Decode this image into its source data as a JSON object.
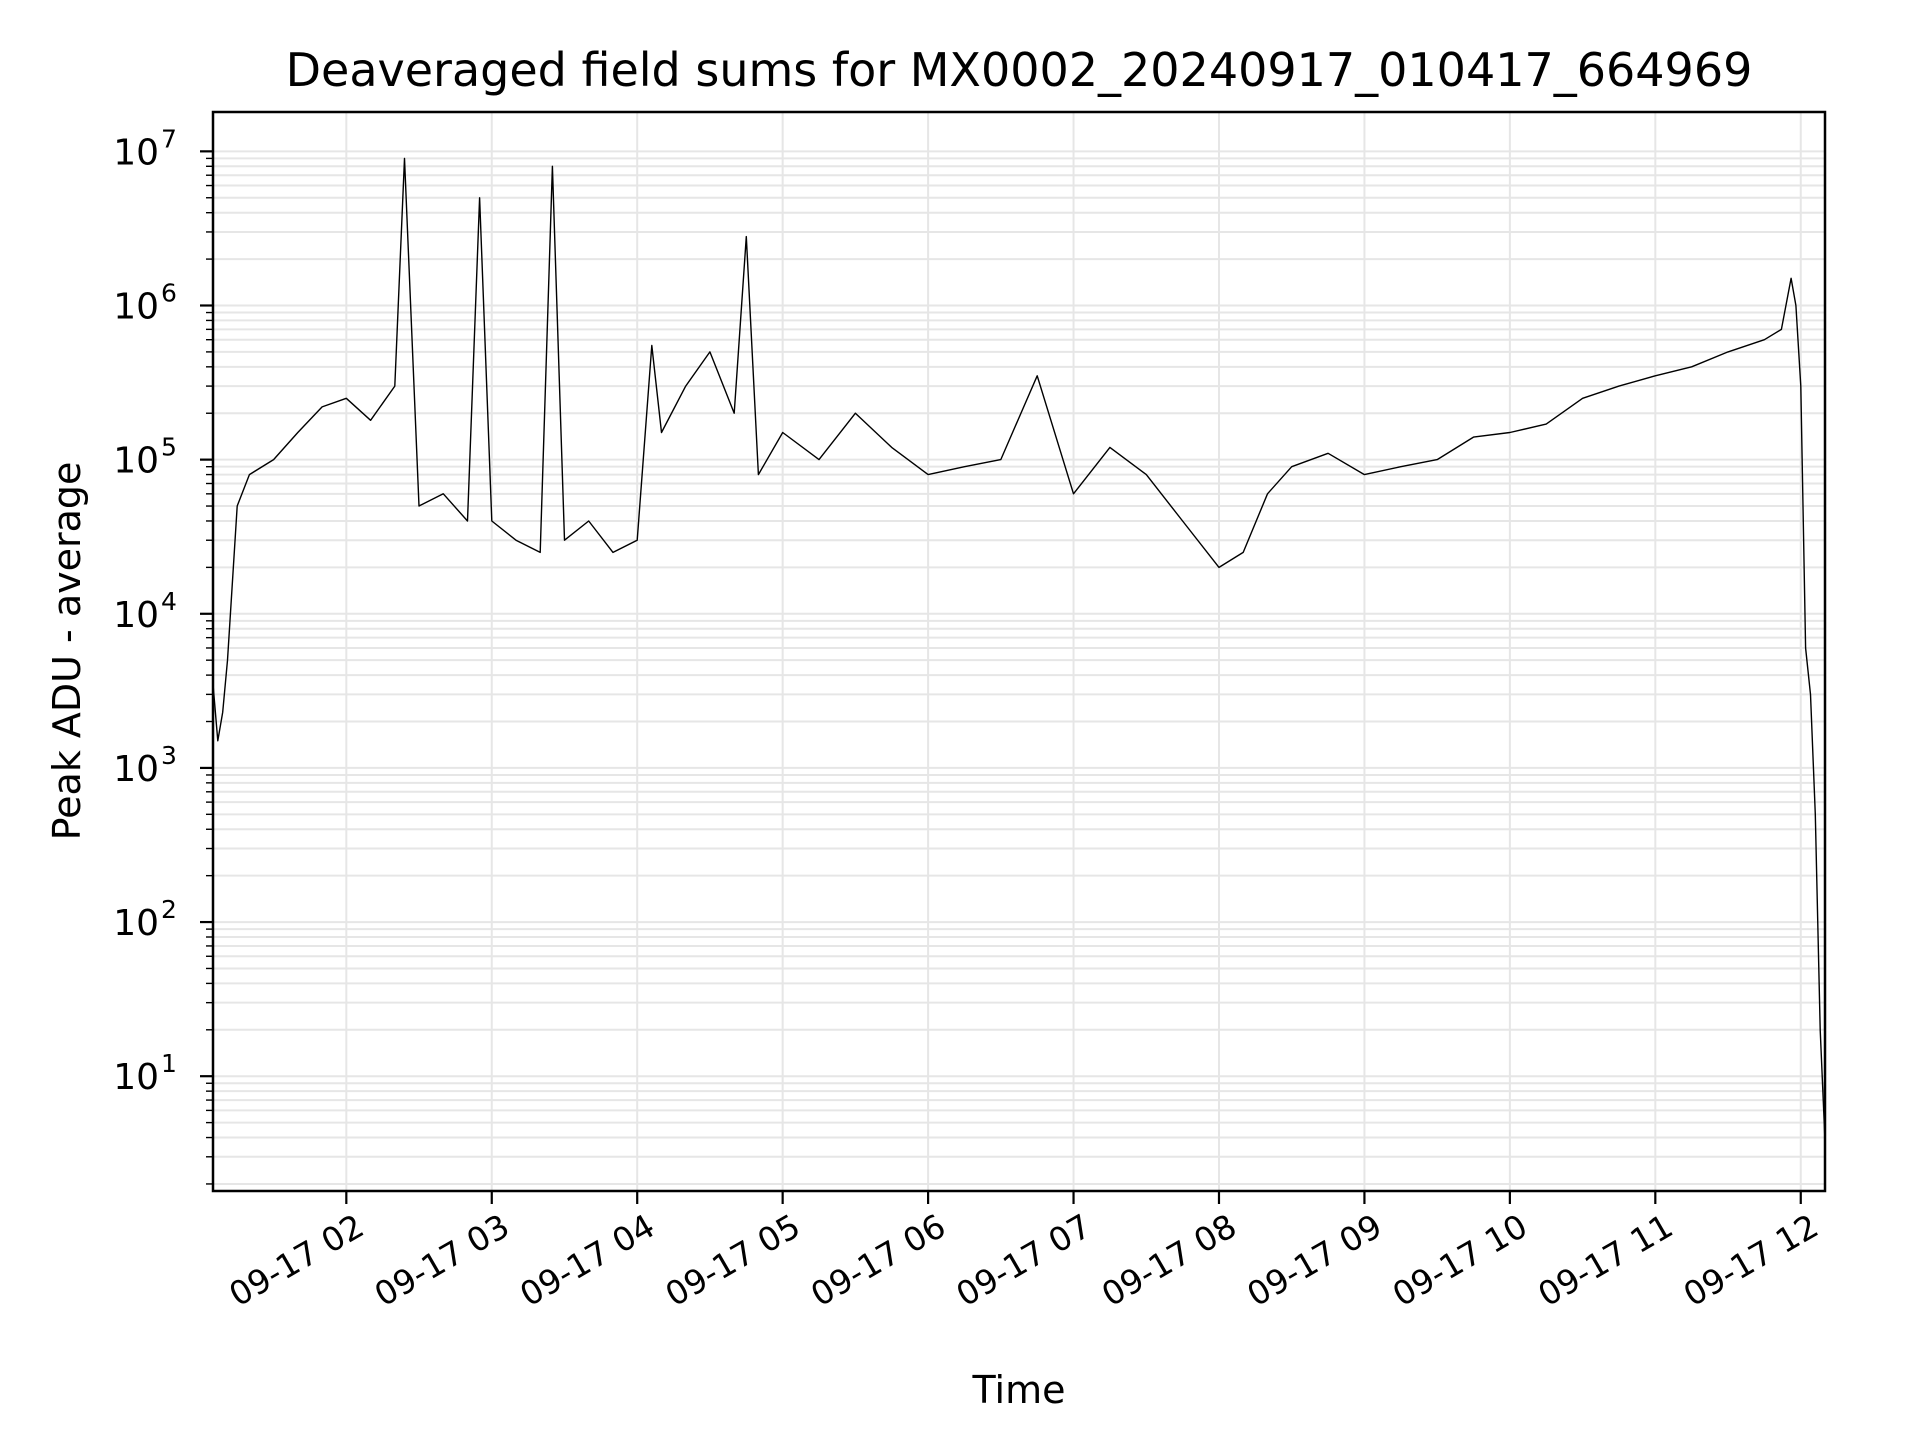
{
  "chart_data": {
    "type": "line",
    "title": "Deaveraged field sums for MX0002_20240917_010417_664969",
    "xlabel": "Time",
    "ylabel": "Peak ADU - average",
    "yscale": "log",
    "ylim": [
      1.8,
      18000000
    ],
    "xlim": [
      "2024-09-17 01:05",
      "2024-09-17 12:10"
    ],
    "grid": true,
    "grid_minor": true,
    "x_ticks": [
      "09-17 02",
      "09-17 03",
      "09-17 04",
      "09-17 05",
      "09-17 06",
      "09-17 07",
      "09-17 08",
      "09-17 09",
      "09-17 10",
      "09-17 11",
      "09-17 12"
    ],
    "x_tick_times": [
      "2024-09-17 02:00",
      "2024-09-17 03:00",
      "2024-09-17 04:00",
      "2024-09-17 05:00",
      "2024-09-17 06:00",
      "2024-09-17 07:00",
      "2024-09-17 08:00",
      "2024-09-17 09:00",
      "2024-09-17 10:00",
      "2024-09-17 11:00",
      "2024-09-17 12:00"
    ],
    "y_ticks": [
      10,
      100,
      1000,
      10000,
      100000,
      1000000,
      10000000
    ],
    "y_tick_labels": [
      {
        "base": "10",
        "exp": "1"
      },
      {
        "base": "10",
        "exp": "2"
      },
      {
        "base": "10",
        "exp": "3"
      },
      {
        "base": "10",
        "exp": "4"
      },
      {
        "base": "10",
        "exp": "5"
      },
      {
        "base": "10",
        "exp": "6"
      },
      {
        "base": "10",
        "exp": "7"
      }
    ],
    "series": [
      {
        "color": "#000000",
        "x": [
          "2024-09-17 01:05",
          "2024-09-17 01:07",
          "2024-09-17 01:09",
          "2024-09-17 01:11",
          "2024-09-17 01:15",
          "2024-09-17 01:20",
          "2024-09-17 01:30",
          "2024-09-17 01:40",
          "2024-09-17 01:50",
          "2024-09-17 02:00",
          "2024-09-17 02:10",
          "2024-09-17 02:20",
          "2024-09-17 02:24",
          "2024-09-17 02:30",
          "2024-09-17 02:40",
          "2024-09-17 02:50",
          "2024-09-17 02:55",
          "2024-09-17 03:00",
          "2024-09-17 03:10",
          "2024-09-17 03:20",
          "2024-09-17 03:25",
          "2024-09-17 03:30",
          "2024-09-17 03:40",
          "2024-09-17 03:50",
          "2024-09-17 04:00",
          "2024-09-17 04:06",
          "2024-09-17 04:10",
          "2024-09-17 04:20",
          "2024-09-17 04:30",
          "2024-09-17 04:40",
          "2024-09-17 04:45",
          "2024-09-17 04:50",
          "2024-09-17 05:00",
          "2024-09-17 05:15",
          "2024-09-17 05:30",
          "2024-09-17 05:45",
          "2024-09-17 06:00",
          "2024-09-17 06:15",
          "2024-09-17 06:30",
          "2024-09-17 06:45",
          "2024-09-17 07:00",
          "2024-09-17 07:15",
          "2024-09-17 07:30",
          "2024-09-17 07:45",
          "2024-09-17 08:00",
          "2024-09-17 08:10",
          "2024-09-17 08:20",
          "2024-09-17 08:30",
          "2024-09-17 08:45",
          "2024-09-17 09:00",
          "2024-09-17 09:15",
          "2024-09-17 09:30",
          "2024-09-17 09:45",
          "2024-09-17 10:00",
          "2024-09-17 10:15",
          "2024-09-17 10:30",
          "2024-09-17 10:45",
          "2024-09-17 11:00",
          "2024-09-17 11:15",
          "2024-09-17 11:30",
          "2024-09-17 11:45",
          "2024-09-17 11:52",
          "2024-09-17 11:56",
          "2024-09-17 11:58",
          "2024-09-17 12:00",
          "2024-09-17 12:02",
          "2024-09-17 12:04",
          "2024-09-17 12:06",
          "2024-09-17 12:08",
          "2024-09-17 12:10"
        ],
        "values": [
          3500,
          1500,
          2300,
          5000,
          50000,
          80000,
          100000,
          150000,
          220000,
          250000,
          180000,
          300000,
          9000000,
          50000,
          60000,
          40000,
          5000000,
          40000,
          30000,
          25000,
          8000000,
          30000,
          40000,
          25000,
          30000,
          550000,
          150000,
          300000,
          500000,
          200000,
          2800000,
          80000,
          150000,
          100000,
          200000,
          120000,
          80000,
          90000,
          100000,
          350000,
          60000,
          120000,
          80000,
          40000,
          20000,
          25000,
          60000,
          90000,
          110000,
          80000,
          90000,
          100000,
          140000,
          150000,
          170000,
          250000,
          300000,
          350000,
          400000,
          500000,
          600000,
          700000,
          1500000,
          1000000,
          300000,
          6000,
          3000,
          500,
          20,
          3.8
        ]
      }
    ]
  }
}
